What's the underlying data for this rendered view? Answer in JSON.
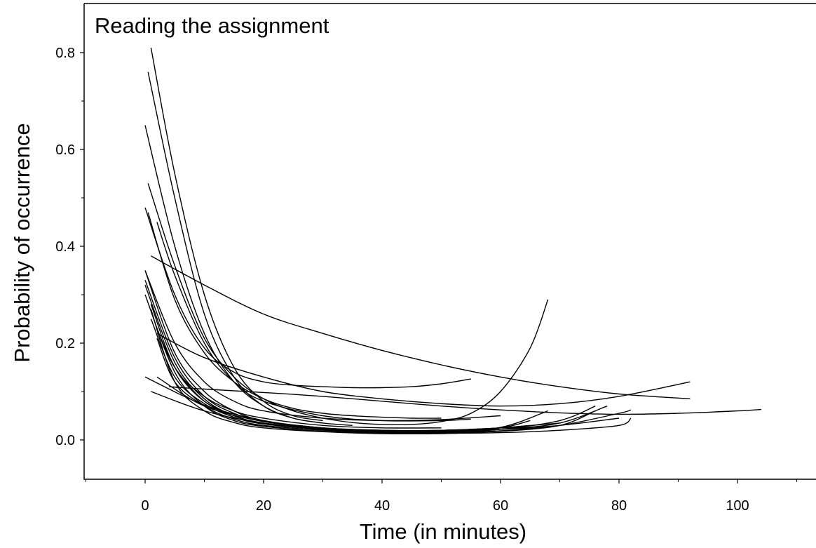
{
  "chart_data": {
    "type": "line",
    "title": "Reading the assignment",
    "xlabel": "Time (in minutes)",
    "ylabel": "Probability of occurrence",
    "xlim": [
      -10,
      113
    ],
    "ylim": [
      -0.08,
      0.86
    ],
    "x_ticks": [
      0,
      20,
      40,
      60,
      80,
      100
    ],
    "x_tick_labels": [
      "0",
      "20",
      "40",
      "60",
      "80",
      "100"
    ],
    "y_ticks": [
      0.0,
      0.2,
      0.4,
      0.6,
      0.8
    ],
    "y_tick_labels": [
      "0.0",
      "0.2",
      "0.4",
      "0.6",
      "0.8"
    ],
    "grid": false,
    "legend": "none",
    "line_color": "#000000",
    "series": [
      {
        "x": [
          1,
          5,
          10,
          15,
          20,
          25,
          30
        ],
        "y": [
          0.81,
          0.55,
          0.3,
          0.15,
          0.08,
          0.05,
          0.04
        ]
      },
      {
        "x": [
          0.5,
          5,
          10,
          15,
          20,
          25,
          30
        ],
        "y": [
          0.76,
          0.5,
          0.26,
          0.13,
          0.07,
          0.045,
          0.035
        ]
      },
      {
        "x": [
          0,
          5,
          10,
          15,
          20,
          25,
          30,
          35
        ],
        "y": [
          0.65,
          0.4,
          0.22,
          0.12,
          0.07,
          0.045,
          0.035,
          0.03
        ]
      },
      {
        "x": [
          0.5,
          5,
          10,
          15,
          20,
          25,
          30,
          35,
          40,
          45,
          50,
          55,
          60,
          65,
          68
        ],
        "y": [
          0.53,
          0.36,
          0.21,
          0.13,
          0.085,
          0.06,
          0.045,
          0.036,
          0.032,
          0.032,
          0.038,
          0.055,
          0.1,
          0.19,
          0.29
        ]
      },
      {
        "x": [
          0,
          5,
          10,
          15,
          20,
          25,
          30,
          35,
          40,
          45,
          50,
          55
        ],
        "y": [
          0.48,
          0.3,
          0.19,
          0.14,
          0.12,
          0.113,
          0.11,
          0.108,
          0.108,
          0.11,
          0.116,
          0.126
        ]
      },
      {
        "x": [
          0.5,
          5,
          10,
          15,
          20,
          25,
          30,
          35,
          40,
          45,
          50
        ],
        "y": [
          0.47,
          0.29,
          0.18,
          0.12,
          0.085,
          0.065,
          0.055,
          0.05,
          0.047,
          0.045,
          0.045
        ]
      },
      {
        "x": [
          1,
          10,
          20,
          30,
          40,
          50,
          60,
          70,
          80,
          92
        ],
        "y": [
          0.38,
          0.32,
          0.26,
          0.22,
          0.185,
          0.155,
          0.13,
          0.11,
          0.095,
          0.085
        ]
      },
      {
        "x": [
          0,
          5,
          10,
          15,
          20,
          30,
          40,
          50,
          60
        ],
        "y": [
          0.35,
          0.2,
          0.12,
          0.08,
          0.06,
          0.045,
          0.04,
          0.042,
          0.05
        ]
      },
      {
        "x": [
          0,
          5,
          10,
          15,
          20,
          30,
          40,
          50,
          60,
          65
        ],
        "y": [
          0.35,
          0.18,
          0.1,
          0.06,
          0.04,
          0.025,
          0.02,
          0.02,
          0.025,
          0.03
        ]
      },
      {
        "x": [
          0,
          5,
          10,
          15,
          20,
          30,
          40,
          50,
          60,
          70
        ],
        "y": [
          0.33,
          0.17,
          0.09,
          0.055,
          0.038,
          0.025,
          0.02,
          0.02,
          0.025,
          0.035
        ]
      },
      {
        "x": [
          0,
          5,
          10,
          15,
          20,
          30,
          40,
          50,
          60,
          70,
          80
        ],
        "y": [
          0.32,
          0.16,
          0.085,
          0.05,
          0.034,
          0.022,
          0.018,
          0.018,
          0.022,
          0.03,
          0.045
        ]
      },
      {
        "x": [
          2,
          5,
          10,
          15,
          20,
          30,
          40,
          50,
          55
        ],
        "y": [
          0.45,
          0.34,
          0.2,
          0.12,
          0.08,
          0.05,
          0.04,
          0.04,
          0.043
        ]
      },
      {
        "x": [
          1,
          5,
          10,
          15,
          20,
          30,
          40,
          50
        ],
        "y": [
          0.28,
          0.15,
          0.09,
          0.06,
          0.045,
          0.03,
          0.025,
          0.025
        ]
      },
      {
        "x": [
          1,
          5,
          10,
          15,
          20,
          30,
          40,
          50,
          60,
          70,
          78
        ],
        "y": [
          0.25,
          0.13,
          0.075,
          0.047,
          0.033,
          0.022,
          0.017,
          0.017,
          0.022,
          0.035,
          0.07
        ]
      },
      {
        "x": [
          2,
          5,
          10,
          15,
          20,
          30,
          40,
          50,
          60,
          65
        ],
        "y": [
          0.23,
          0.15,
          0.08,
          0.05,
          0.035,
          0.022,
          0.016,
          0.017,
          0.025,
          0.04
        ]
      },
      {
        "x": [
          2,
          10,
          20,
          30,
          40,
          50,
          60,
          70,
          80,
          92
        ],
        "y": [
          0.22,
          0.17,
          0.13,
          0.1,
          0.085,
          0.075,
          0.07,
          0.075,
          0.09,
          0.12
        ]
      },
      {
        "x": [
          2,
          5,
          10,
          15,
          20,
          30,
          40,
          50,
          60,
          70,
          76
        ],
        "y": [
          0.21,
          0.12,
          0.07,
          0.043,
          0.03,
          0.02,
          0.015,
          0.015,
          0.022,
          0.04,
          0.07
        ]
      },
      {
        "x": [
          3,
          6,
          10,
          15,
          20,
          30,
          40,
          50,
          60,
          68
        ],
        "y": [
          0.2,
          0.13,
          0.08,
          0.05,
          0.035,
          0.022,
          0.017,
          0.018,
          0.026,
          0.06
        ]
      },
      {
        "x": [
          4,
          10,
          20,
          30,
          40,
          50,
          60,
          70,
          80,
          90,
          100,
          104
        ],
        "y": [
          0.11,
          0.105,
          0.098,
          0.09,
          0.08,
          0.07,
          0.062,
          0.056,
          0.053,
          0.055,
          0.06,
          0.063
        ]
      },
      {
        "x": [
          0,
          10,
          20,
          30,
          40,
          50,
          60,
          70,
          80,
          82
        ],
        "y": [
          0.13,
          0.072,
          0.04,
          0.025,
          0.018,
          0.016,
          0.019,
          0.03,
          0.055,
          0.062
        ]
      },
      {
        "x": [
          1,
          10,
          20,
          30,
          40,
          50,
          60,
          70,
          80,
          82
        ],
        "y": [
          0.1,
          0.06,
          0.034,
          0.022,
          0.016,
          0.014,
          0.015,
          0.02,
          0.03,
          0.045
        ]
      },
      {
        "x": [
          2,
          10,
          20,
          30,
          40,
          50,
          60,
          70,
          76
        ],
        "y": [
          0.13,
          0.07,
          0.038,
          0.024,
          0.017,
          0.015,
          0.018,
          0.03,
          0.06
        ]
      },
      {
        "x": [
          0,
          5,
          10,
          15,
          20,
          30,
          40,
          50,
          60,
          65
        ],
        "y": [
          0.3,
          0.14,
          0.07,
          0.04,
          0.028,
          0.018,
          0.014,
          0.014,
          0.018,
          0.025
        ]
      },
      {
        "x": [
          1,
          5,
          10,
          15,
          20,
          30,
          40,
          50,
          55
        ],
        "y": [
          0.27,
          0.12,
          0.06,
          0.036,
          0.025,
          0.017,
          0.013,
          0.013,
          0.015
        ]
      }
    ]
  }
}
